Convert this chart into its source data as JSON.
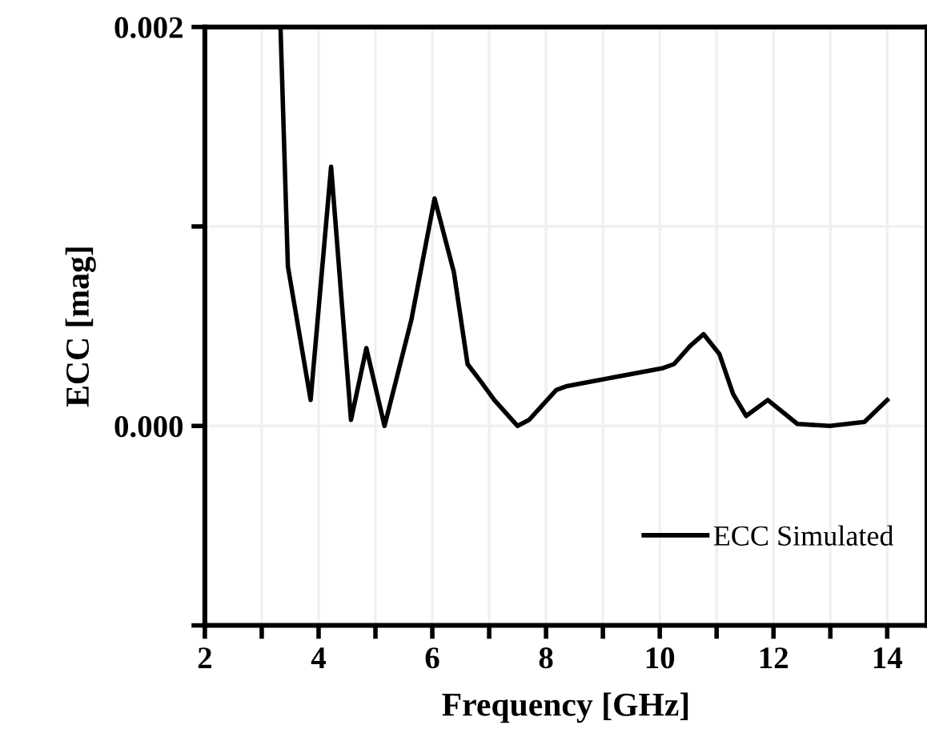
{
  "chart_data": {
    "type": "line",
    "xlabel": "Frequency [GHz]",
    "ylabel": "ECC [mag]",
    "xlim": [
      2,
      14.7
    ],
    "ylim": [
      -0.001,
      0.002
    ],
    "xticks": [
      2,
      {
        "value": 3,
        "label": null
      },
      4,
      {
        "value": 5,
        "label": null
      },
      6,
      {
        "value": 7,
        "label": null
      },
      8,
      {
        "value": 9,
        "label": null
      },
      10,
      {
        "value": 11,
        "label": null
      },
      12,
      {
        "value": 13,
        "label": null
      },
      14
    ],
    "yticks": [
      {
        "value": -0.001,
        "label": null
      },
      {
        "value": 0,
        "label": "0.000"
      },
      {
        "value": 0.001,
        "label": null
      },
      {
        "value": 0.002,
        "label": "0.002"
      }
    ],
    "grid": true,
    "legend": "bottom right",
    "marker": "none",
    "line_style": "solid",
    "series": [
      {
        "name": "ECC Simulated",
        "color": "#000000",
        "x": [
          3.33,
          3.46,
          3.86,
          4.22,
          4.57,
          4.84,
          5.16,
          5.63,
          6.04,
          6.38,
          6.62,
          6.86,
          7.09,
          7.5,
          7.7,
          8.18,
          8.37,
          8.93,
          10.06,
          10.25,
          10.53,
          10.77,
          11.05,
          11.29,
          11.52,
          11.9,
          12.42,
          12.99,
          13.6,
          14.0
        ],
        "values": [
          0.002,
          0.0008,
          0.00013,
          0.0013,
          3e-05,
          0.00039,
          0.0,
          0.00053,
          0.00114,
          0.00077,
          0.00031,
          0.00022,
          0.00013,
          0.0,
          3e-05,
          0.00018,
          0.0002,
          0.00023,
          0.00029,
          0.00031,
          0.0004,
          0.00046,
          0.00036,
          0.00016,
          5e-05,
          0.00013,
          1e-05,
          0.0,
          2e-05,
          0.00013
        ]
      }
    ]
  }
}
